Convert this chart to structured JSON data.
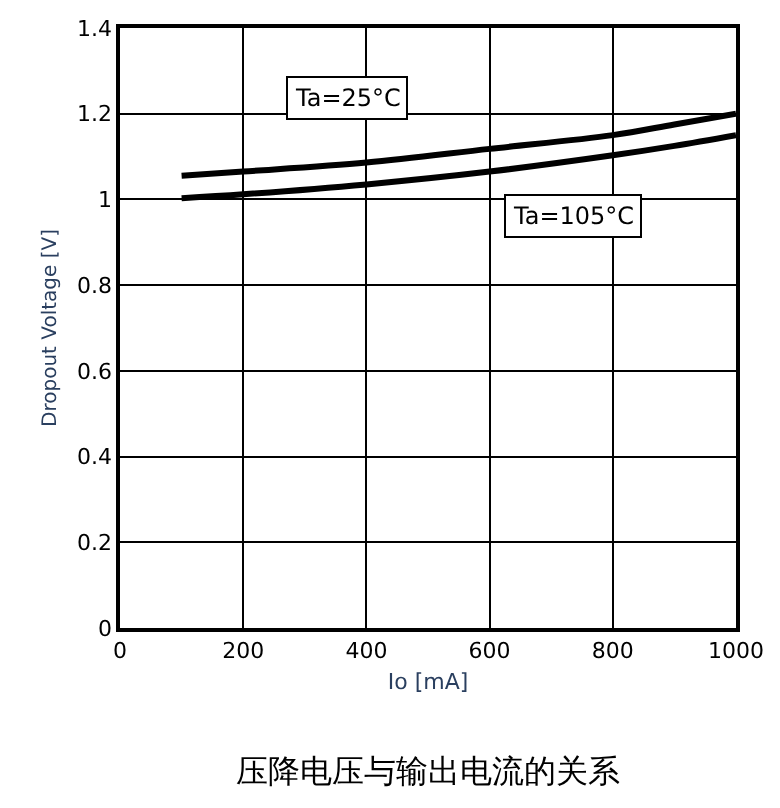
{
  "chart_data": {
    "type": "line",
    "xlabel": "Io [mA]",
    "ylabel": "Dropout Voltage [V]",
    "series": [
      {
        "name": "Ta=25°C",
        "color": "#000000",
        "x": [
          100,
          200,
          400,
          600,
          800,
          900,
          1000
        ],
        "values": [
          1.055,
          1.065,
          1.086,
          1.118,
          1.15,
          1.175,
          1.2
        ]
      },
      {
        "name": "Ta=105°C",
        "color": "#000000",
        "x": [
          100,
          200,
          400,
          600,
          800,
          900,
          1000
        ],
        "values": [
          1.003,
          1.012,
          1.035,
          1.065,
          1.103,
          1.125,
          1.15
        ]
      }
    ],
    "xlim": [
      0,
      1000
    ],
    "xticks": [
      0,
      200,
      400,
      600,
      800,
      1000
    ],
    "ylim": [
      0,
      1.4
    ],
    "yticks": [
      0,
      0.2,
      0.4,
      0.6,
      0.8,
      1,
      1.2,
      1.4
    ],
    "grid": true,
    "marker": "none",
    "line_style": "solid",
    "annotations": [
      "压降电压与输出电流的关系"
    ]
  }
}
